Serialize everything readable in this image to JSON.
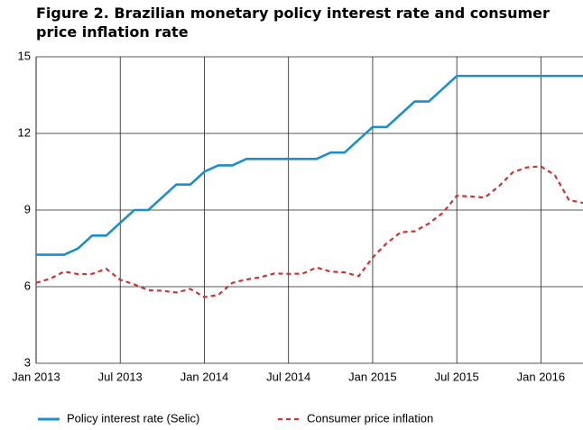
{
  "chart_data": {
    "type": "line",
    "title": "Figure 2. Brazilian monetary policy interest rate and consumer price inflation rate",
    "categories": [
      "Jan 2013",
      null,
      null,
      null,
      null,
      null,
      "Jul 2013",
      null,
      null,
      null,
      null,
      null,
      "Jan 2014",
      null,
      null,
      null,
      null,
      null,
      "Jul 2014",
      null,
      null,
      null,
      null,
      null,
      "Jan 2015",
      null,
      null,
      null,
      null,
      null,
      "Jul 2015",
      null,
      null,
      null,
      null,
      null,
      "Jan 2016",
      null,
      null,
      null
    ],
    "series": [
      {
        "name": "Policy interest rate (Selic)",
        "color": "#1b8fcb",
        "dash": false,
        "values": [
          7.25,
          7.25,
          7.25,
          7.5,
          8.0,
          8.0,
          8.5,
          9.0,
          9.0,
          9.5,
          10.0,
          10.0,
          10.5,
          10.75,
          10.75,
          11.0,
          11.0,
          11.0,
          11.0,
          11.0,
          11.0,
          11.25,
          11.25,
          11.75,
          12.25,
          12.25,
          12.75,
          13.25,
          13.25,
          13.75,
          14.25,
          14.25,
          14.25,
          14.25,
          14.25,
          14.25,
          14.25,
          14.25,
          14.25,
          14.25
        ]
      },
      {
        "name": "Consumer price inflation",
        "color": "#cc3333",
        "dash": true,
        "values": [
          6.15,
          6.31,
          6.59,
          6.49,
          6.5,
          6.7,
          6.27,
          6.09,
          5.86,
          5.84,
          5.77,
          5.91,
          5.59,
          5.68,
          6.15,
          6.28,
          6.37,
          6.52,
          6.5,
          6.51,
          6.75,
          6.59,
          6.56,
          6.41,
          7.14,
          7.7,
          8.13,
          8.17,
          8.47,
          8.89,
          9.56,
          9.53,
          9.49,
          9.93,
          10.48,
          10.67,
          10.71,
          10.36,
          9.39,
          9.28
        ]
      }
    ],
    "ylim": [
      3,
      15
    ],
    "yticks": [
      3,
      6,
      9,
      12,
      15
    ],
    "grid": true,
    "legend": "bottom"
  }
}
